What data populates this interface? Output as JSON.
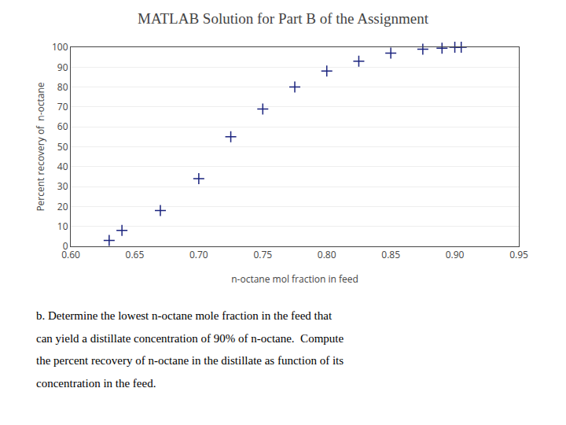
{
  "chart_data": {
    "type": "scatter",
    "title": "MATLAB Solution for Part B of the Assignment",
    "xlabel": "n-octane mol fraction in feed",
    "ylabel": "Percent recovery of  n-octane",
    "x": [
      0.63,
      0.64,
      0.67,
      0.7,
      0.725,
      0.75,
      0.775,
      0.8,
      0.825,
      0.85,
      0.875,
      0.89,
      0.9,
      0.905
    ],
    "values": [
      3,
      8,
      18,
      34,
      55,
      69,
      80,
      88,
      93,
      97,
      99,
      99.5,
      100,
      100
    ],
    "color": "#1a237e",
    "marker": "+",
    "xlim": [
      0.6,
      0.95
    ],
    "ylim": [
      0,
      100
    ],
    "xticks": [
      {
        "value": 0.6,
        "label": "0.60"
      },
      {
        "value": 0.65,
        "label": "0.65"
      },
      {
        "value": 0.7,
        "label": "0.70"
      },
      {
        "value": 0.75,
        "label": "0.75"
      },
      {
        "value": 0.8,
        "label": "0.80"
      },
      {
        "value": 0.85,
        "label": "0.85"
      },
      {
        "value": 0.9,
        "label": "0.90"
      },
      {
        "value": 0.95,
        "label": "0.95"
      }
    ],
    "yticks": [
      0,
      10,
      20,
      30,
      40,
      50,
      60,
      70,
      80,
      90,
      100
    ],
    "grid": "y",
    "annotations": [
      "b. Determine the lowest n-octane mole fraction in the feed that",
      "can yield a distillate concentration of 90% of n-octane.  Compute",
      "the percent recovery of n-octane in the distillate as function of its",
      "concentration in the feed."
    ]
  }
}
